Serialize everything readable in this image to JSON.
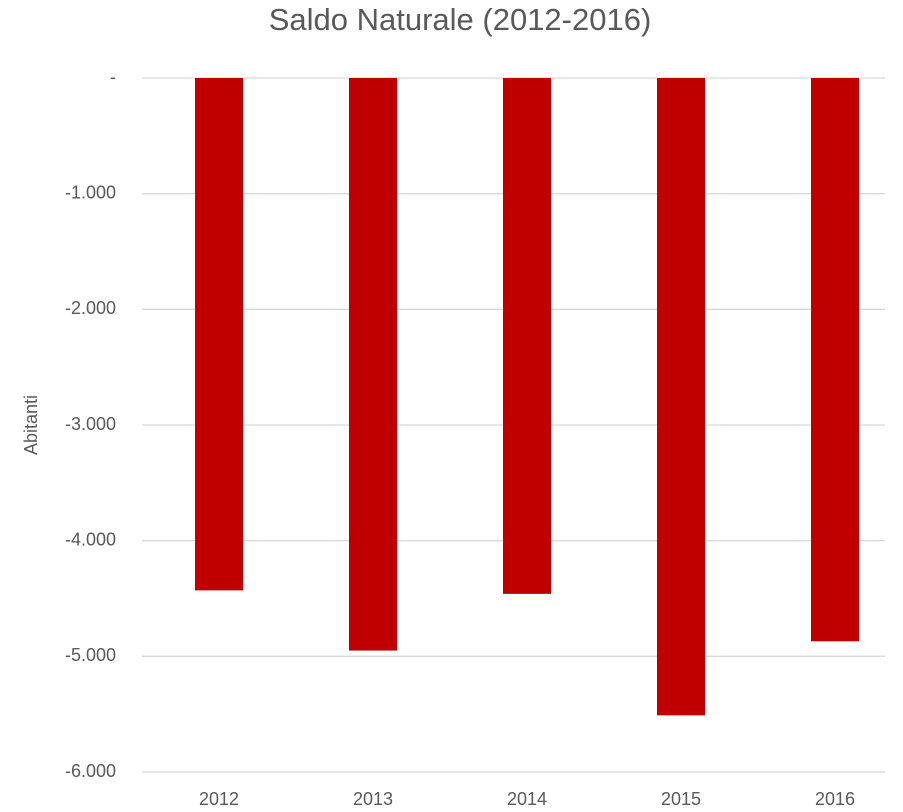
{
  "chart_data": {
    "type": "bar",
    "title": "Saldo Naturale (2012-2016)",
    "y_label": "Abitanti",
    "categories": [
      "2012",
      "2013",
      "2014",
      "2015",
      "2016"
    ],
    "values": [
      -4430,
      -4950,
      -4460,
      -5510,
      -4870
    ],
    "color": "#c00000",
    "ylim": [
      -6000,
      0
    ],
    "yticks": [
      {
        "value": 0,
        "label": "-"
      },
      {
        "value": -1000,
        "label": "-1.000"
      },
      {
        "value": -2000,
        "label": "-2.000"
      },
      {
        "value": -3000,
        "label": "-3.000"
      },
      {
        "value": -4000,
        "label": "-4.000"
      },
      {
        "value": -5000,
        "label": "-5.000"
      },
      {
        "value": -6000,
        "label": "-6.000"
      }
    ],
    "grid": true
  }
}
